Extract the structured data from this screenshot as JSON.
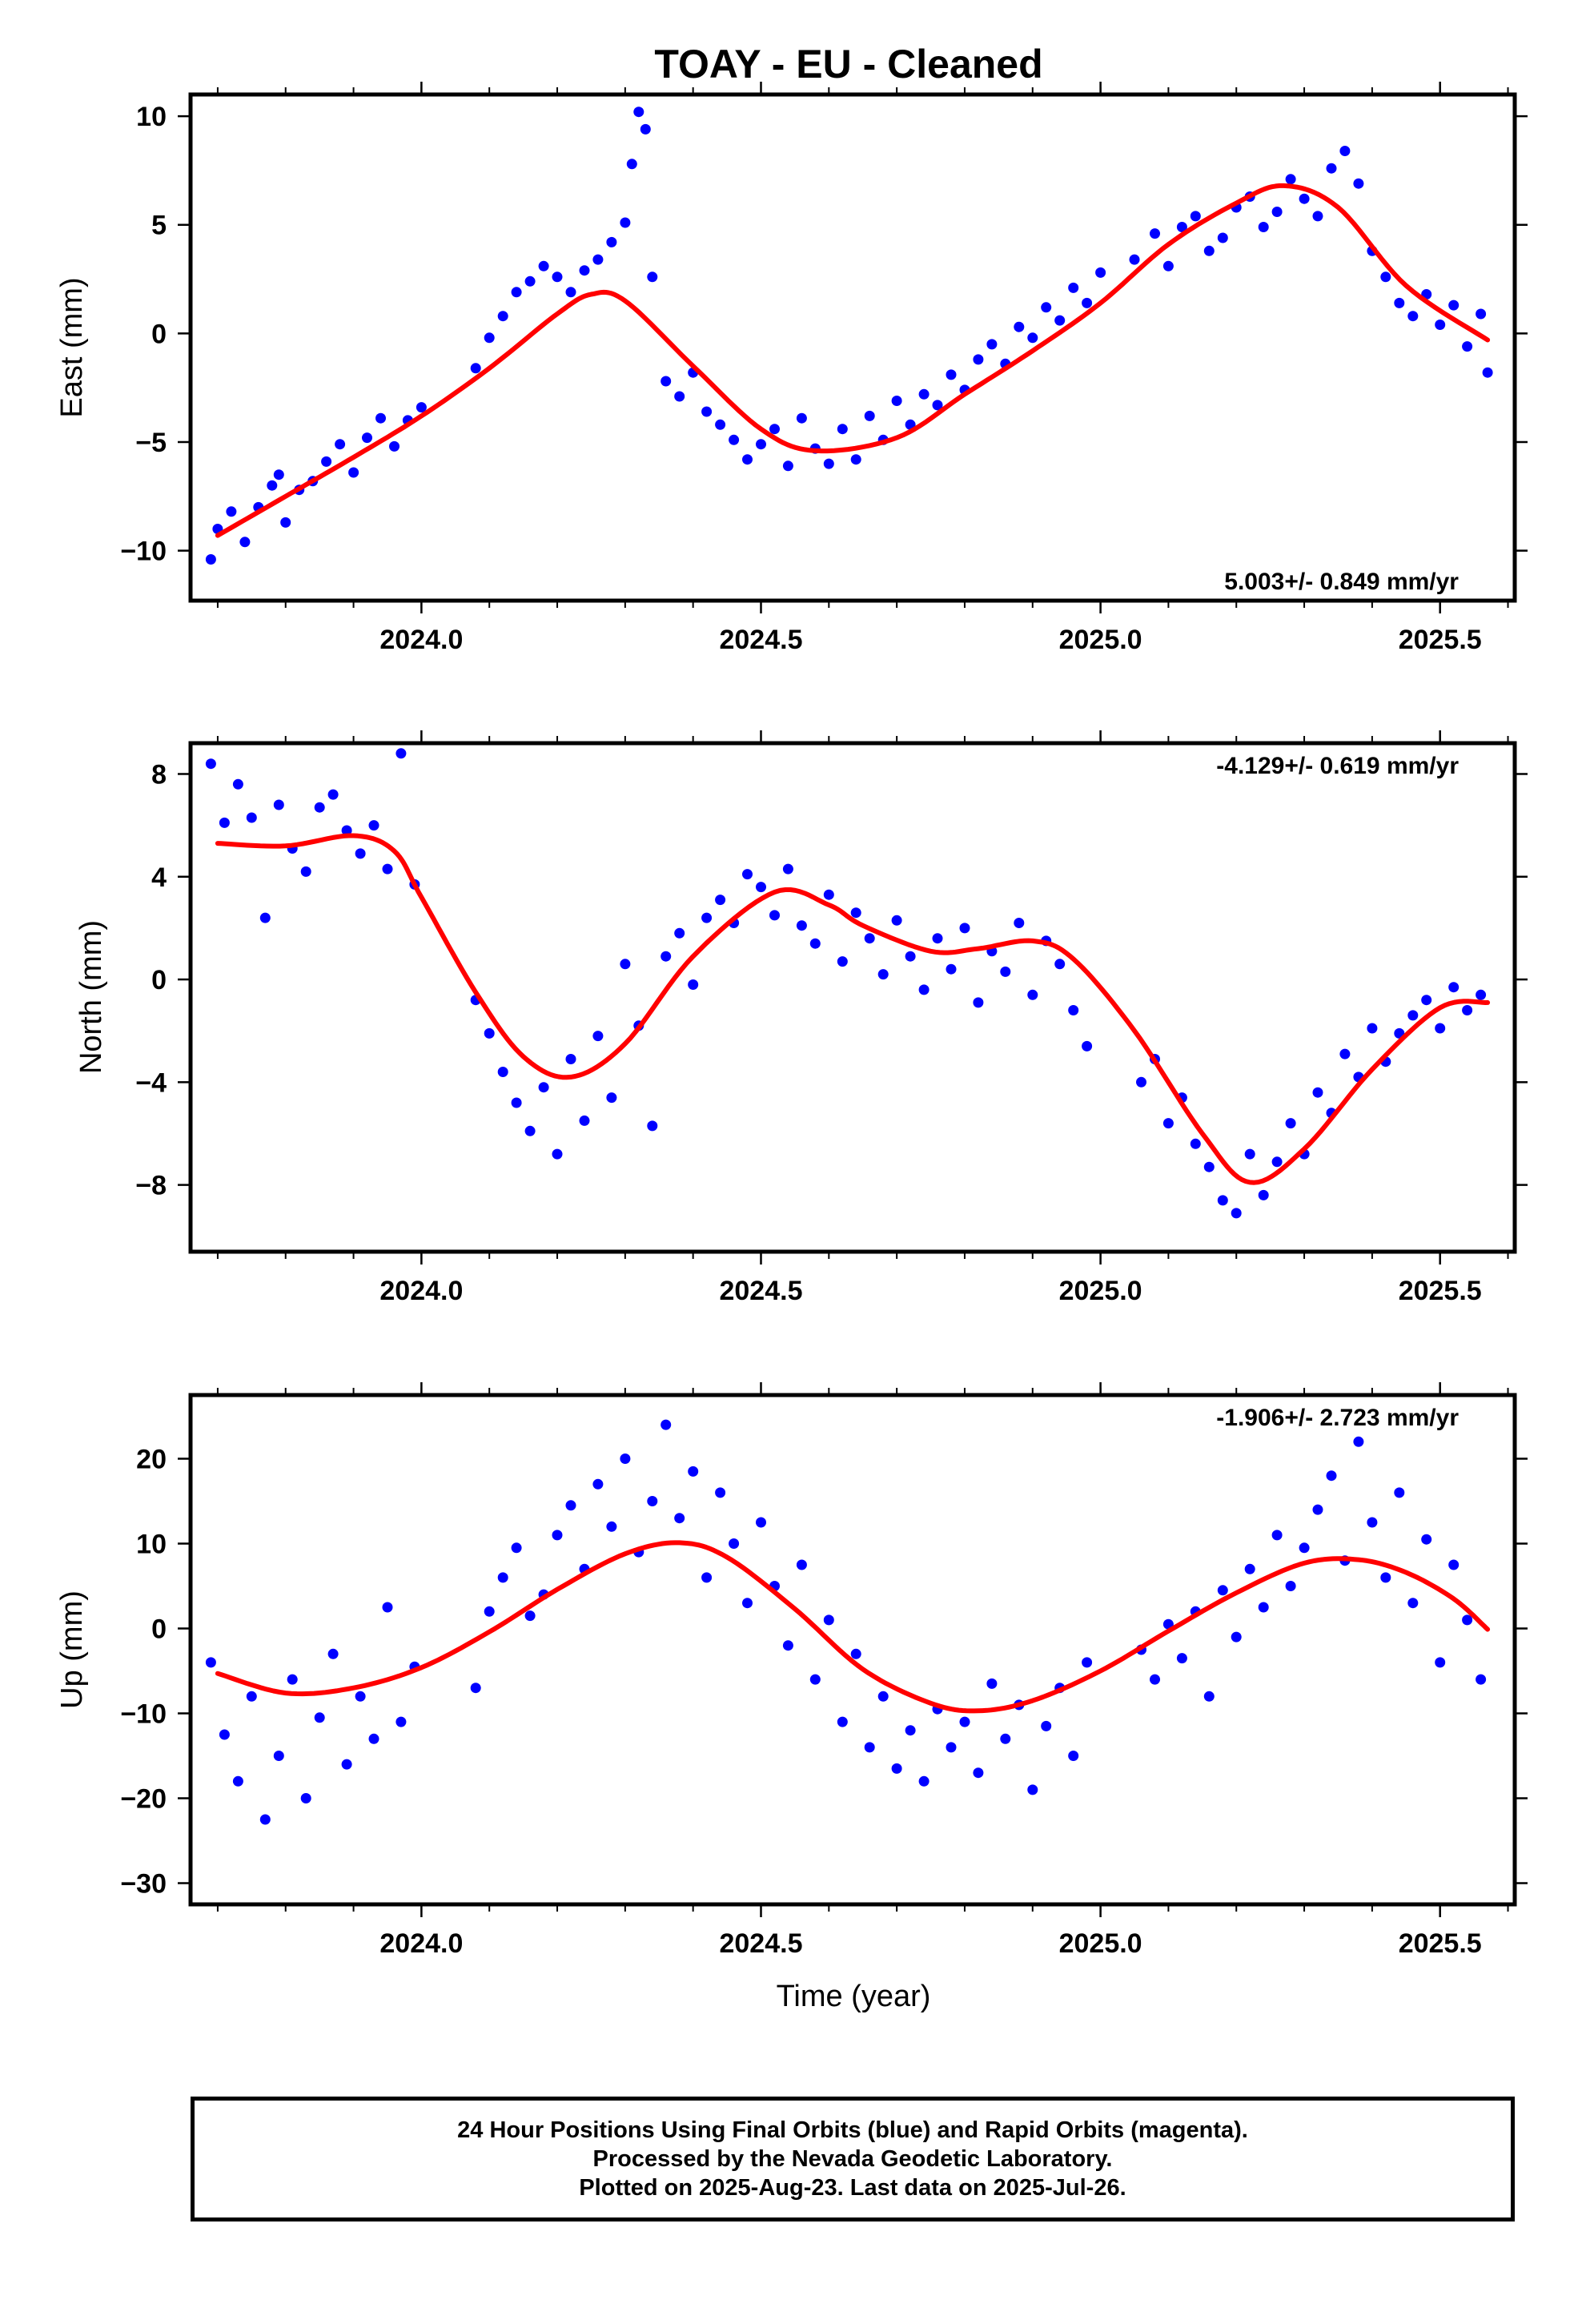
{
  "title": "TOAY  - EU - Cleaned",
  "x_axis_label": "Time (year)",
  "footer": {
    "line1": "24 Hour Positions Using Final Orbits (blue) and Rapid Orbits (magenta).",
    "line2": "Processed by the Nevada Geodetic Laboratory.",
    "line3": "Plotted on 2025-Aug-23. Last data on 2025-Jul-26."
  },
  "colors": {
    "points": "#0000ff",
    "fit": "#ff0000",
    "frame": "#000000"
  },
  "chart_data": [
    {
      "type": "scatter",
      "ylabel": "East (mm)",
      "xlim": [
        2023.66,
        2025.61
      ],
      "ylim": [
        -12.3,
        11.0
      ],
      "x_ticks": [
        2024.0,
        2024.5,
        2025.0,
        2025.5
      ],
      "x_tick_labels": [
        "2024.0",
        "2024.5",
        "2025.0",
        "2025.5"
      ],
      "y_ticks": [
        10,
        5,
        0,
        -5,
        -10
      ],
      "y_tick_labels": [
        "10",
        "5",
        "0",
        "−5",
        "−10"
      ],
      "rate_label": "5.003+/- 0.849 mm/yr",
      "rate_position": "bottom-right",
      "fit_series": {
        "name": "",
        "x": [
          2023.7,
          2023.8,
          2023.9,
          2024.0,
          2024.1,
          2024.2,
          2024.25,
          2024.3,
          2024.4,
          2024.5,
          2024.58,
          2024.7,
          2024.8,
          2024.9,
          2025.0,
          2025.1,
          2025.2,
          2025.27,
          2025.35,
          2025.45,
          2025.57
        ],
        "y": [
          -9.3,
          -7.5,
          -5.7,
          -3.8,
          -1.6,
          0.9,
          1.8,
          1.5,
          -1.5,
          -4.4,
          -5.4,
          -4.8,
          -2.8,
          -0.8,
          1.4,
          4.1,
          6.0,
          6.8,
          5.8,
          2.2,
          -0.3
        ]
      },
      "point_series": {
        "name": "",
        "x": [
          2023.69,
          2023.7,
          2023.72,
          2023.74,
          2023.76,
          2023.78,
          2023.79,
          2023.8,
          2023.82,
          2023.84,
          2023.86,
          2023.88,
          2023.9,
          2023.92,
          2023.94,
          2023.96,
          2023.98,
          2024.0,
          2024.08,
          2024.1,
          2024.12,
          2024.14,
          2024.16,
          2024.18,
          2024.2,
          2024.22,
          2024.24,
          2024.26,
          2024.28,
          2024.3,
          2024.31,
          2024.32,
          2024.33,
          2024.34,
          2024.36,
          2024.38,
          2024.4,
          2024.42,
          2024.44,
          2024.46,
          2024.48,
          2024.5,
          2024.52,
          2024.54,
          2024.56,
          2024.58,
          2024.6,
          2024.62,
          2024.64,
          2024.66,
          2024.68,
          2024.7,
          2024.72,
          2024.74,
          2024.76,
          2024.78,
          2024.8,
          2024.82,
          2024.84,
          2024.86,
          2024.88,
          2024.9,
          2024.92,
          2024.94,
          2024.96,
          2024.98,
          2025.0,
          2025.05,
          2025.08,
          2025.1,
          2025.12,
          2025.14,
          2025.16,
          2025.18,
          2025.2,
          2025.22,
          2025.24,
          2025.26,
          2025.28,
          2025.3,
          2025.32,
          2025.34,
          2025.36,
          2025.38,
          2025.4,
          2025.42,
          2025.44,
          2025.46,
          2025.48,
          2025.5,
          2025.52,
          2025.54,
          2025.56,
          2025.57
        ],
        "y": [
          -10.4,
          -9.0,
          -8.2,
          -9.6,
          -8.0,
          -7.0,
          -6.5,
          -8.7,
          -7.2,
          -6.8,
          -5.9,
          -5.1,
          -6.4,
          -4.8,
          -3.9,
          -5.2,
          -4.0,
          -3.4,
          -1.6,
          -0.2,
          0.8,
          1.9,
          2.4,
          3.1,
          2.6,
          1.9,
          2.9,
          3.4,
          4.2,
          5.1,
          7.8,
          10.2,
          9.4,
          2.6,
          -2.2,
          -2.9,
          -1.8,
          -3.6,
          -4.2,
          -4.9,
          -5.8,
          -5.1,
          -4.4,
          -6.1,
          -3.9,
          -5.3,
          -6.0,
          -4.4,
          -5.8,
          -3.8,
          -4.9,
          -3.1,
          -4.2,
          -2.8,
          -3.3,
          -1.9,
          -2.6,
          -1.2,
          -0.5,
          -1.4,
          0.3,
          -0.2,
          1.2,
          0.6,
          2.1,
          1.4,
          2.8,
          3.4,
          4.6,
          3.1,
          4.9,
          5.4,
          3.8,
          4.4,
          5.8,
          6.3,
          4.9,
          5.6,
          7.1,
          6.2,
          5.4,
          7.6,
          8.4,
          6.9,
          3.8,
          2.6,
          1.4,
          0.8,
          1.8,
          0.4,
          1.3,
          -0.6,
          0.9,
          -1.8
        ]
      }
    },
    {
      "type": "scatter",
      "ylabel": "North (mm)",
      "xlim": [
        2023.66,
        2025.61
      ],
      "ylim": [
        -10.6,
        9.2
      ],
      "x_ticks": [
        2024.0,
        2024.5,
        2025.0,
        2025.5
      ],
      "x_tick_labels": [
        "2024.0",
        "2024.5",
        "2025.0",
        "2025.5"
      ],
      "y_ticks": [
        8,
        4,
        0,
        -4,
        -8
      ],
      "y_tick_labels": [
        "8",
        "4",
        "0",
        "−4",
        "−8"
      ],
      "rate_label": "-4.129+/- 0.619 mm/yr",
      "rate_position": "top-right",
      "fit_series": {
        "name": "",
        "x": [
          2023.7,
          2023.8,
          2023.9,
          2023.96,
          2024.0,
          2024.08,
          2024.15,
          2024.22,
          2024.3,
          2024.4,
          2024.52,
          2024.6,
          2024.65,
          2024.75,
          2024.82,
          2024.9,
          2024.96,
          2025.05,
          2025.15,
          2025.22,
          2025.3,
          2025.4,
          2025.5,
          2025.57
        ],
        "y": [
          5.3,
          5.2,
          5.6,
          5.0,
          3.2,
          -0.5,
          -3.0,
          -3.8,
          -2.5,
          0.9,
          3.4,
          2.9,
          2.1,
          1.1,
          1.2,
          1.5,
          0.8,
          -2.0,
          -6.0,
          -7.9,
          -6.6,
          -3.5,
          -1.1,
          -0.9
        ]
      },
      "point_series": {
        "name": "",
        "x": [
          2023.69,
          2023.71,
          2023.73,
          2023.75,
          2023.77,
          2023.79,
          2023.81,
          2023.83,
          2023.85,
          2023.87,
          2023.89,
          2023.91,
          2023.93,
          2023.95,
          2023.97,
          2023.99,
          2024.08,
          2024.1,
          2024.12,
          2024.14,
          2024.16,
          2024.18,
          2024.2,
          2024.22,
          2024.24,
          2024.26,
          2024.28,
          2024.3,
          2024.32,
          2024.34,
          2024.36,
          2024.38,
          2024.4,
          2024.42,
          2024.44,
          2024.46,
          2024.48,
          2024.5,
          2024.52,
          2024.54,
          2024.56,
          2024.58,
          2024.6,
          2024.62,
          2024.64,
          2024.66,
          2024.68,
          2024.7,
          2024.72,
          2024.74,
          2024.76,
          2024.78,
          2024.8,
          2024.82,
          2024.84,
          2024.86,
          2024.88,
          2024.9,
          2024.92,
          2024.94,
          2024.96,
          2024.98,
          2025.06,
          2025.08,
          2025.1,
          2025.12,
          2025.14,
          2025.16,
          2025.18,
          2025.2,
          2025.22,
          2025.24,
          2025.26,
          2025.28,
          2025.3,
          2025.32,
          2025.34,
          2025.36,
          2025.38,
          2025.4,
          2025.42,
          2025.44,
          2025.46,
          2025.48,
          2025.5,
          2025.52,
          2025.54,
          2025.56
        ],
        "y": [
          8.4,
          6.1,
          7.6,
          6.3,
          2.4,
          6.8,
          5.1,
          4.2,
          6.7,
          7.2,
          5.8,
          4.9,
          6.0,
          4.3,
          8.8,
          3.7,
          -0.8,
          -2.1,
          -3.6,
          -4.8,
          -5.9,
          -4.2,
          -6.8,
          -3.1,
          -5.5,
          -2.2,
          -4.6,
          0.6,
          -1.8,
          -5.7,
          0.9,
          1.8,
          -0.2,
          2.4,
          3.1,
          2.2,
          4.1,
          3.6,
          2.5,
          4.3,
          2.1,
          1.4,
          3.3,
          0.7,
          2.6,
          1.6,
          0.2,
          2.3,
          0.9,
          -0.4,
          1.6,
          0.4,
          2.0,
          -0.9,
          1.1,
          0.3,
          2.2,
          -0.6,
          1.5,
          0.6,
          -1.2,
          -2.6,
          -4.0,
          -3.1,
          -5.6,
          -4.6,
          -6.4,
          -7.3,
          -8.6,
          -9.1,
          -6.8,
          -8.4,
          -7.1,
          -5.6,
          -6.8,
          -4.4,
          -5.2,
          -2.9,
          -3.8,
          -1.9,
          -3.2,
          -2.1,
          -1.4,
          -0.8,
          -1.9,
          -0.3,
          -1.2,
          -0.6
        ]
      }
    },
    {
      "type": "scatter",
      "ylabel": "Up (mm)",
      "xlim": [
        2023.66,
        2025.61
      ],
      "ylim": [
        -32.5,
        27.5
      ],
      "x_ticks": [
        2024.0,
        2024.5,
        2025.0,
        2025.5
      ],
      "x_tick_labels": [
        "2024.0",
        "2024.5",
        "2025.0",
        "2025.5"
      ],
      "y_ticks": [
        20,
        10,
        0,
        -10,
        -20,
        -30
      ],
      "y_tick_labels": [
        "20",
        "10",
        "0",
        "−10",
        "−20",
        "−30"
      ],
      "rate_label": "-1.906+/- 2.723 mm/yr",
      "rate_position": "top-right",
      "fit_series": {
        "name": "",
        "x": [
          2023.7,
          2023.8,
          2023.9,
          2024.0,
          2024.1,
          2024.2,
          2024.3,
          2024.38,
          2024.45,
          2024.55,
          2024.65,
          2024.75,
          2024.82,
          2024.9,
          2025.0,
          2025.1,
          2025.2,
          2025.3,
          2025.38,
          2025.45,
          2025.52,
          2025.57
        ],
        "y": [
          -5.3,
          -7.6,
          -7.0,
          -4.6,
          -0.4,
          4.6,
          8.8,
          10.1,
          8.4,
          2.3,
          -4.8,
          -8.8,
          -9.7,
          -8.5,
          -5.0,
          -0.3,
          4.2,
          7.7,
          8.1,
          6.6,
          3.5,
          -0.1
        ]
      },
      "point_series": {
        "name": "",
        "x": [
          2023.69,
          2023.71,
          2023.73,
          2023.75,
          2023.77,
          2023.79,
          2023.81,
          2023.83,
          2023.85,
          2023.87,
          2023.89,
          2023.91,
          2023.93,
          2023.95,
          2023.97,
          2023.99,
          2024.08,
          2024.1,
          2024.12,
          2024.14,
          2024.16,
          2024.18,
          2024.2,
          2024.22,
          2024.24,
          2024.26,
          2024.28,
          2024.3,
          2024.32,
          2024.34,
          2024.36,
          2024.38,
          2024.4,
          2024.42,
          2024.44,
          2024.46,
          2024.48,
          2024.5,
          2024.52,
          2024.54,
          2024.56,
          2024.58,
          2024.6,
          2024.62,
          2024.64,
          2024.66,
          2024.68,
          2024.7,
          2024.72,
          2024.74,
          2024.76,
          2024.78,
          2024.8,
          2024.82,
          2024.84,
          2024.86,
          2024.88,
          2024.9,
          2024.92,
          2024.94,
          2024.96,
          2024.98,
          2025.06,
          2025.08,
          2025.1,
          2025.12,
          2025.14,
          2025.16,
          2025.18,
          2025.2,
          2025.22,
          2025.24,
          2025.26,
          2025.28,
          2025.3,
          2025.32,
          2025.34,
          2025.36,
          2025.38,
          2025.4,
          2025.42,
          2025.44,
          2025.46,
          2025.48,
          2025.5,
          2025.52,
          2025.54,
          2025.56
        ],
        "y": [
          -4.0,
          -12.5,
          -18.0,
          -8.0,
          -22.5,
          -15.0,
          -6.0,
          -20.0,
          -10.5,
          -3.0,
          -16.0,
          -8.0,
          -13.0,
          2.5,
          -11.0,
          -4.5,
          -7.0,
          2.0,
          6.0,
          9.5,
          1.5,
          4.0,
          11.0,
          14.5,
          7.0,
          17.0,
          12.0,
          20.0,
          9.0,
          15.0,
          24.0,
          13.0,
          18.5,
          6.0,
          16.0,
          10.0,
          3.0,
          12.5,
          5.0,
          -2.0,
          7.5,
          -6.0,
          1.0,
          -11.0,
          -3.0,
          -14.0,
          -8.0,
          -16.5,
          -12.0,
          -18.0,
          -9.5,
          -14.0,
          -11.0,
          -17.0,
          -6.5,
          -13.0,
          -9.0,
          -19.0,
          -11.5,
          -7.0,
          -15.0,
          -4.0,
          -2.5,
          -6.0,
          0.5,
          -3.5,
          2.0,
          -8.0,
          4.5,
          -1.0,
          7.0,
          2.5,
          11.0,
          5.0,
          9.5,
          14.0,
          18.0,
          8.0,
          22.0,
          12.5,
          6.0,
          16.0,
          3.0,
          10.5,
          -4.0,
          7.5,
          1.0,
          -6.0
        ]
      }
    }
  ]
}
